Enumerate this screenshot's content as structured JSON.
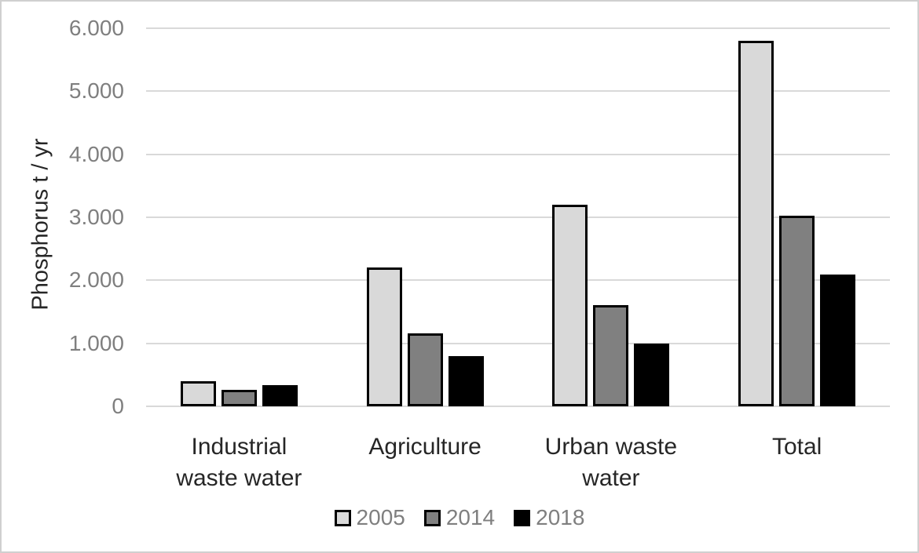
{
  "chart_data": {
    "type": "bar",
    "title": "",
    "xlabel": "",
    "ylabel": "Phosphorus t / yr",
    "categories": [
      "Industrial waste water",
      "Agriculture",
      "Urban waste water",
      "Total"
    ],
    "category_label_lines": [
      [
        "Industrial",
        "waste water"
      ],
      [
        "Agriculture"
      ],
      [
        "Urban waste",
        "water"
      ],
      [
        "Total"
      ]
    ],
    "series": [
      {
        "name": "2005",
        "color": "#d9d9d9",
        "values": [
          400,
          2200,
          3200,
          5800
        ]
      },
      {
        "name": "2014",
        "color": "#808080",
        "values": [
          260,
          1160,
          1600,
          3030
        ]
      },
      {
        "name": "2018",
        "color": "#000000",
        "values": [
          330,
          800,
          1000,
          2090
        ]
      }
    ],
    "ylim": [
      0,
      6000
    ],
    "ytick_interval": 1000,
    "ytick_labels": [
      "0",
      "1.000",
      "2.000",
      "3.000",
      "4.000",
      "5.000",
      "6.000"
    ],
    "grid": true,
    "legend_position": "bottom",
    "colors": {
      "gridline": "#d9d9d9",
      "bar_border": "#000000",
      "tick_label": "#7f7f7f",
      "legend_label": "#7f7f7f",
      "category_label": "#262626",
      "axis_title": "#262626",
      "canvas_border": "#d0d0d0"
    }
  }
}
